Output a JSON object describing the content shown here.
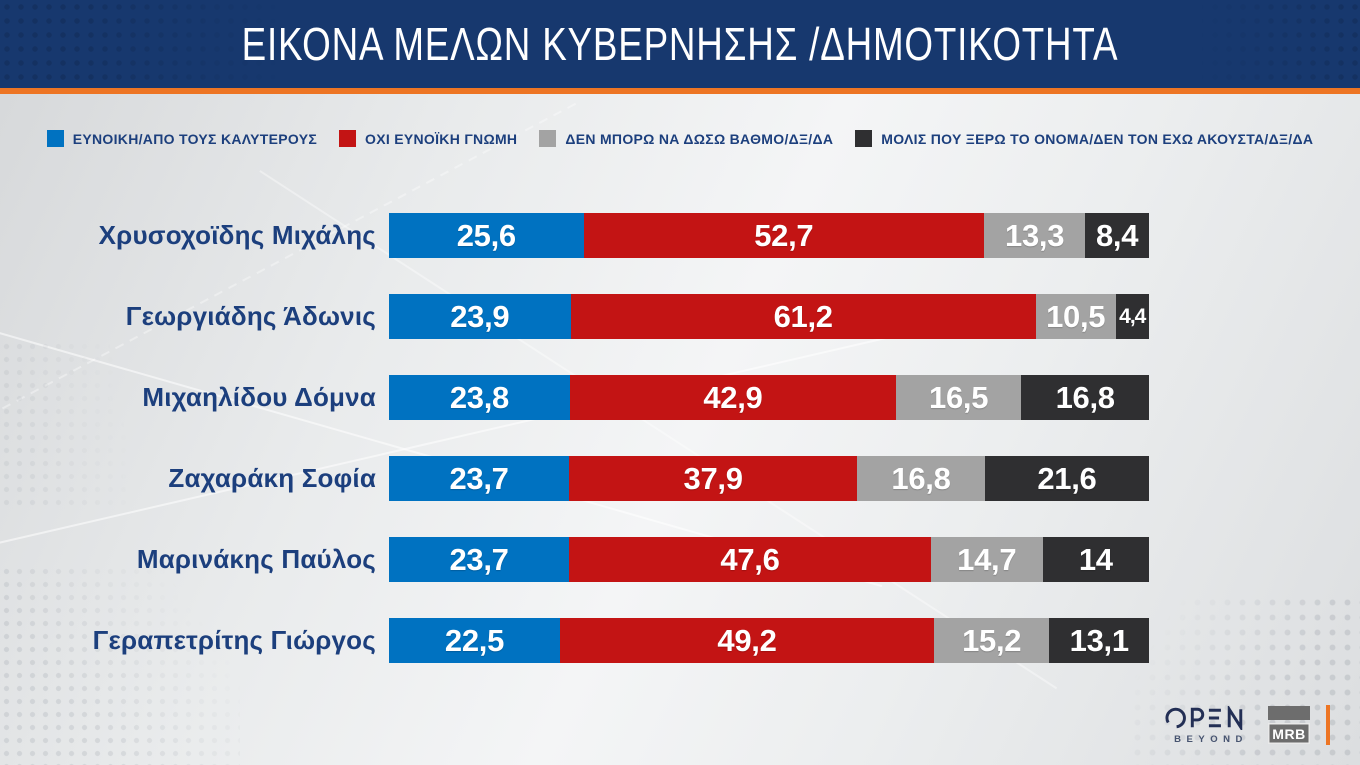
{
  "title": "ΕΙΚΟΝΑ ΜΕΛΩΝ ΚΥΒΕΡΝΗΣΗΣ /ΔΗΜΟΤΙΚΟΤΗΤΑ",
  "colors": {
    "header_bg": "#17386e",
    "accent_orange": "#ed7524",
    "favorable_blue": "#0072c1",
    "unfavorable_red": "#c31414",
    "neutral_gray": "#a3a3a3",
    "unknown_dark": "#2f2f31",
    "label_navy": "#1c3f7d"
  },
  "legend": [
    {
      "label": "ΕΥΝΟΙΚΗ/ΑΠΟ ΤΟΥΣ ΚΑΛΥΤΕΡΟΥΣ",
      "color": "#0072c1"
    },
    {
      "label": "ΟΧΙ ΕΥΝΟΪΚΗ ΓΝΩΜΗ",
      "color": "#c31414"
    },
    {
      "label": "ΔΕΝ ΜΠΟΡΩ ΝΑ ΔΩΣΩ ΒΑΘΜΟ/ΔΞ/ΔΑ",
      "color": "#a3a3a3"
    },
    {
      "label": "ΜΟΛΙΣ ΠΟΥ ΞΕΡΩ ΤΟ ΟΝΟΜΑ/ΔΕΝ ΤΟΝ ΕΧΩ ΑΚΟΥΣΤΑ/ΔΞ/ΔΑ",
      "color": "#2f2f31"
    }
  ],
  "chart_data": {
    "type": "bar",
    "variant": "horizontal-stacked-100",
    "unit": "percent",
    "xlim": [
      0,
      100
    ],
    "legend_position": "top",
    "categories": [
      "Χρυσοχοϊδης Μιχάλης",
      "Γεωργιάδης Άδωνις",
      "Μιχαηλίδου Δόμνα",
      "Ζαχαράκη Σοφία",
      "Μαρινάκης Παύλος",
      "Γεραπετρίτης Γιώργος"
    ],
    "series": [
      {
        "name": "ΕΥΝΟΙΚΗ/ΑΠΟ ΤΟΥΣ ΚΑΛΥΤΕΡΟΥΣ",
        "color": "#0072c1",
        "values": [
          25.6,
          23.9,
          23.8,
          23.7,
          23.7,
          22.5
        ]
      },
      {
        "name": "ΟΧΙ ΕΥΝΟΪΚΗ ΓΝΩΜΗ",
        "color": "#c31414",
        "values": [
          52.7,
          61.2,
          42.9,
          37.9,
          47.6,
          49.2
        ]
      },
      {
        "name": "ΔΕΝ ΜΠΟΡΩ ΝΑ ΔΩΣΩ ΒΑΘΜΟ/ΔΞ/ΔΑ",
        "color": "#a3a3a3",
        "values": [
          13.3,
          10.5,
          16.5,
          16.8,
          14.7,
          15.2
        ]
      },
      {
        "name": "ΜΟΛΙΣ ΠΟΥ ΞΕΡΩ ΤΟ ΟΝΟΜΑ/ΔΕΝ ΤΟΝ ΕΧΩ ΑΚΟΥΣΤΑ/ΔΞ/ΔΑ",
        "color": "#2f2f31",
        "values": [
          8.4,
          4.4,
          16.8,
          21.6,
          14,
          13.1
        ]
      }
    ],
    "display_values": [
      [
        "25,6",
        "52,7",
        "13,3",
        "8,4"
      ],
      [
        "23,9",
        "61,2",
        "10,5",
        "4,4"
      ],
      [
        "23,8",
        "42,9",
        "16,5",
        "16,8"
      ],
      [
        "23,7",
        "37,9",
        "16,8",
        "21,6"
      ],
      [
        "23,7",
        "47,6",
        "14,7",
        "14"
      ],
      [
        "22,5",
        "49,2",
        "15,2",
        "13,1"
      ]
    ]
  },
  "footer": {
    "open_logo": "OPEN",
    "open_tagline": "BEYOND",
    "mrb_logo": "MRB"
  }
}
